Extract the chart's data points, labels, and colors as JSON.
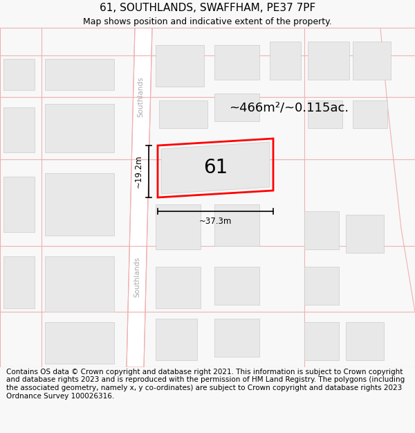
{
  "title_line1": "61, SOUTHLANDS, SWAFFHAM, PE37 7PF",
  "title_line2": "Map shows position and indicative extent of the property.",
  "footer_text": "Contains OS data © Crown copyright and database right 2021. This information is subject to Crown copyright and database rights 2023 and is reproduced with the permission of HM Land Registry. The polygons (including the associated geometry, namely x, y co-ordinates) are subject to Crown copyright and database rights 2023 Ordnance Survey 100026316.",
  "area_label": "~466m²/~0.115ac.",
  "number_label": "61",
  "width_label": "~37.3m",
  "height_label": "~19.2m",
  "bg_color": "#f8f8f8",
  "map_bg": "#ffffff",
  "road_line_color": "#f0b0b0",
  "building_color": "#e8e8e8",
  "building_outline": "#cccccc",
  "highlight_color": "#ff0000",
  "title_fontsize": 11,
  "subtitle_fontsize": 9,
  "footer_fontsize": 7.5
}
